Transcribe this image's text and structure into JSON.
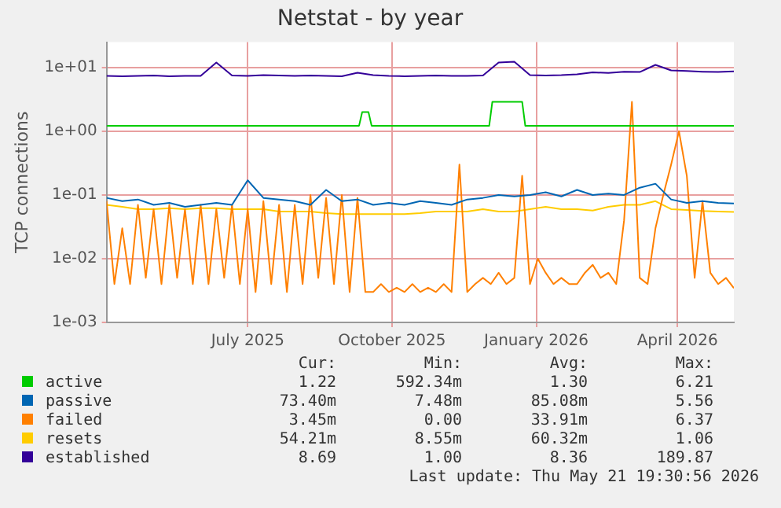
{
  "chart_data": {
    "type": "line",
    "title": "Netstat - by year",
    "ylabel": "TCP connections",
    "log": "y",
    "grid": true,
    "legend": "bottom",
    "marker": "none",
    "line_style": "solid",
    "xlim": [
      "2025-04-16",
      "2026-05-21"
    ],
    "xticks": [
      {
        "value": "2025-07-15",
        "label": "July 2025"
      },
      {
        "value": "2025-10-15",
        "label": "October 2025"
      },
      {
        "value": "2026-01-15",
        "label": "January 2026"
      },
      {
        "value": "2026-04-15",
        "label": "April 2026"
      }
    ],
    "ylim": [
      0.001,
      25
    ],
    "yticks": [
      {
        "value": 0.001,
        "label": "1e-03"
      },
      {
        "value": 0.01,
        "label": "1e-02"
      },
      {
        "value": 0.1,
        "label": "1e-01"
      },
      {
        "value": 1,
        "label": "1e+00"
      },
      {
        "value": 10,
        "label": "1e+01"
      }
    ],
    "x": [
      "2025-04-16",
      "2025-04-26",
      "2025-05-06",
      "2025-05-16",
      "2025-05-26",
      "2025-06-05",
      "2025-06-15",
      "2025-06-25",
      "2025-07-05",
      "2025-07-15",
      "2025-07-25",
      "2025-08-04",
      "2025-08-14",
      "2025-08-24",
      "2025-09-03",
      "2025-09-13",
      "2025-09-23",
      "2025-10-03",
      "2025-10-13",
      "2025-10-23",
      "2025-11-02",
      "2025-11-12",
      "2025-11-22",
      "2025-12-02",
      "2025-12-12",
      "2025-12-22",
      "2026-01-01",
      "2026-01-11",
      "2026-01-21",
      "2026-01-31",
      "2026-02-10",
      "2026-02-20",
      "2026-03-02",
      "2026-03-12",
      "2026-03-22",
      "2026-04-01",
      "2026-04-11",
      "2026-04-21",
      "2026-05-01",
      "2026-05-11",
      "2026-05-21"
    ],
    "series": [
      {
        "name": "active",
        "color": "#00cc00",
        "x": [
          "2025-04-16",
          "2025-09-24",
          "2025-09-26",
          "2025-09-30",
          "2025-10-02",
          "2025-12-16",
          "2025-12-18",
          "2026-01-06",
          "2026-01-08",
          "2026-05-21"
        ],
        "values": [
          1.22,
          1.22,
          2.0,
          2.0,
          1.22,
          1.22,
          2.9,
          2.9,
          1.22,
          1.22
        ]
      },
      {
        "name": "passive",
        "color": "#0066b3",
        "values": [
          0.09,
          0.08,
          0.085,
          0.07,
          0.075,
          0.065,
          0.07,
          0.075,
          0.07,
          0.17,
          0.09,
          0.085,
          0.08,
          0.07,
          0.12,
          0.08,
          0.085,
          0.07,
          0.075,
          0.07,
          0.08,
          0.075,
          0.07,
          0.085,
          0.09,
          0.1,
          0.095,
          0.1,
          0.11,
          0.095,
          0.12,
          0.1,
          0.105,
          0.1,
          0.13,
          0.15,
          0.085,
          0.075,
          0.08,
          0.075,
          0.0734
        ]
      },
      {
        "name": "failed",
        "color": "#ff8000",
        "x": [
          "2025-04-16",
          "2025-04-21",
          "2025-04-26",
          "2025-05-01",
          "2025-05-06",
          "2025-05-11",
          "2025-05-16",
          "2025-05-21",
          "2025-05-26",
          "2025-05-31",
          "2025-06-05",
          "2025-06-10",
          "2025-06-15",
          "2025-06-20",
          "2025-06-25",
          "2025-06-30",
          "2025-07-05",
          "2025-07-10",
          "2025-07-15",
          "2025-07-20",
          "2025-07-25",
          "2025-07-30",
          "2025-08-04",
          "2025-08-09",
          "2025-08-14",
          "2025-08-19",
          "2025-08-24",
          "2025-08-29",
          "2025-09-03",
          "2025-09-08",
          "2025-09-13",
          "2025-09-18",
          "2025-09-23",
          "2025-09-28",
          "2025-10-03",
          "2025-10-08",
          "2025-10-13",
          "2025-10-18",
          "2025-10-23",
          "2025-10-28",
          "2025-11-02",
          "2025-11-07",
          "2025-11-12",
          "2025-11-17",
          "2025-11-22",
          "2025-11-27",
          "2025-12-02",
          "2025-12-07",
          "2025-12-12",
          "2025-12-17",
          "2025-12-22",
          "2025-12-27",
          "2026-01-01",
          "2026-01-06",
          "2026-01-11",
          "2026-01-16",
          "2026-01-21",
          "2026-01-26",
          "2026-01-31",
          "2026-02-05",
          "2026-02-10",
          "2026-02-15",
          "2026-02-20",
          "2026-02-25",
          "2026-03-02",
          "2026-03-07",
          "2026-03-12",
          "2026-03-17",
          "2026-03-22",
          "2026-03-27",
          "2026-04-01",
          "2026-04-06",
          "2026-04-11",
          "2026-04-16",
          "2026-04-21",
          "2026-04-26",
          "2026-05-01",
          "2026-05-06",
          "2026-05-11",
          "2026-05-16",
          "2026-05-21"
        ],
        "values": [
          0.08,
          0.004,
          0.03,
          0.004,
          0.07,
          0.005,
          0.06,
          0.004,
          0.07,
          0.005,
          0.06,
          0.004,
          0.07,
          0.004,
          0.06,
          0.005,
          0.07,
          0.004,
          0.06,
          0.003,
          0.08,
          0.004,
          0.07,
          0.003,
          0.07,
          0.004,
          0.1,
          0.005,
          0.09,
          0.004,
          0.1,
          0.003,
          0.09,
          0.003,
          0.003,
          0.004,
          0.003,
          0.0035,
          0.003,
          0.004,
          0.003,
          0.0035,
          0.003,
          0.004,
          0.003,
          0.3,
          0.003,
          0.004,
          0.005,
          0.004,
          0.006,
          0.004,
          0.005,
          0.2,
          0.004,
          0.01,
          0.006,
          0.004,
          0.005,
          0.004,
          0.004,
          0.006,
          0.008,
          0.005,
          0.006,
          0.004,
          0.04,
          2.9,
          0.005,
          0.004,
          0.03,
          0.1,
          0.3,
          1.0,
          0.2,
          0.005,
          0.08,
          0.006,
          0.004,
          0.005,
          0.00345
        ]
      },
      {
        "name": "resets",
        "color": "#ffcc00",
        "values": [
          0.07,
          0.065,
          0.06,
          0.06,
          0.062,
          0.06,
          0.062,
          0.062,
          0.06,
          0.06,
          0.06,
          0.055,
          0.055,
          0.055,
          0.052,
          0.05,
          0.05,
          0.05,
          0.05,
          0.05,
          0.052,
          0.055,
          0.055,
          0.055,
          0.06,
          0.055,
          0.055,
          0.06,
          0.065,
          0.06,
          0.06,
          0.057,
          0.065,
          0.07,
          0.07,
          0.08,
          0.06,
          0.058,
          0.056,
          0.055,
          0.0542
        ]
      },
      {
        "name": "established",
        "color": "#330099",
        "values": [
          7.4,
          7.3,
          7.4,
          7.5,
          7.3,
          7.4,
          7.4,
          12,
          7.5,
          7.4,
          7.6,
          7.5,
          7.4,
          7.5,
          7.4,
          7.3,
          8.3,
          7.6,
          7.4,
          7.3,
          7.4,
          7.5,
          7.4,
          7.4,
          7.5,
          12,
          12.3,
          7.6,
          7.5,
          7.6,
          7.8,
          8.4,
          8.2,
          8.6,
          8.5,
          11,
          9.0,
          8.8,
          8.6,
          8.5,
          8.69
        ]
      }
    ],
    "annotations": [
      "Cur:",
      "Min:",
      "Avg:",
      "Max:",
      "1.22",
      "592.34m",
      "1.30",
      "6.21",
      "73.40m",
      "7.48m",
      "85.08m",
      "5.56",
      "3.45m",
      "0.00",
      "33.91m",
      "6.37",
      "54.21m",
      "8.55m",
      "60.32m",
      "1.06",
      "8.69",
      "1.00",
      "8.36",
      "189.87",
      "Last update: Thu May 21 19:30:56 2026"
    ]
  }
}
